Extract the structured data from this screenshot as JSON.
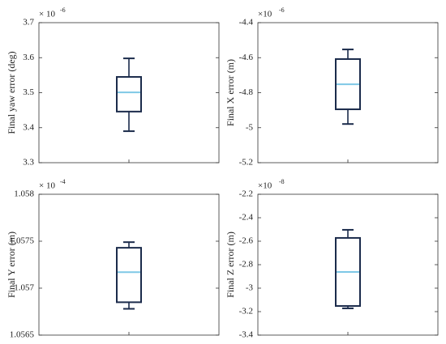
{
  "chart_data": [
    {
      "type": "box",
      "ylabel": "Final yaw error (deg)",
      "multiplier": "× 10",
      "exponent": "-6",
      "ylim": [
        3.3,
        3.7
      ],
      "yticks": [
        3.3,
        3.4,
        3.5,
        3.6,
        3.7
      ],
      "box": {
        "whisker_low": 3.39,
        "q1": 3.446,
        "median": 3.501,
        "q3": 3.545,
        "whisker_high": 3.598
      },
      "color": "#1b2b4b",
      "median_color": "#7ec8e6"
    },
    {
      "type": "box",
      "ylabel": "Final X error (m)",
      "multiplier": "×10",
      "exponent": "-6",
      "ylim": [
        -5.2,
        -4.4
      ],
      "yticks": [
        -5.2,
        -5,
        -4.8,
        -4.6,
        -4.4
      ],
      "box": {
        "whisker_low": -4.979,
        "q1": -4.895,
        "median": -4.752,
        "q3": -4.608,
        "whisker_high": -4.553
      },
      "color": "#1b2b4b",
      "median_color": "#7ec8e6"
    },
    {
      "type": "box",
      "ylabel": "Final Y error (m)",
      "multiplier": "× 10",
      "exponent": "-4",
      "ylim": [
        1.0565,
        1.058
      ],
      "yticks": [
        1.0565,
        1.057,
        1.0575,
        1.058
      ],
      "box": {
        "whisker_low": 1.05678,
        "q1": 1.05685,
        "median": 1.05717,
        "q3": 1.05743,
        "whisker_high": 1.05749
      },
      "color": "#1b2b4b",
      "median_color": "#7ec8e6"
    },
    {
      "type": "box",
      "ylabel": "Final Z error (m)",
      "multiplier": "×10",
      "exponent": "-8",
      "ylim": [
        -3.4,
        -2.2
      ],
      "yticks": [
        -3.4,
        -3.2,
        -3,
        -2.8,
        -2.6,
        -2.4,
        -2.2
      ],
      "box": {
        "whisker_low": -3.172,
        "q1": -3.152,
        "median": -2.862,
        "q3": -2.572,
        "whisker_high": -2.503
      },
      "color": "#1b2b4b",
      "median_color": "#7ec8e6"
    }
  ]
}
